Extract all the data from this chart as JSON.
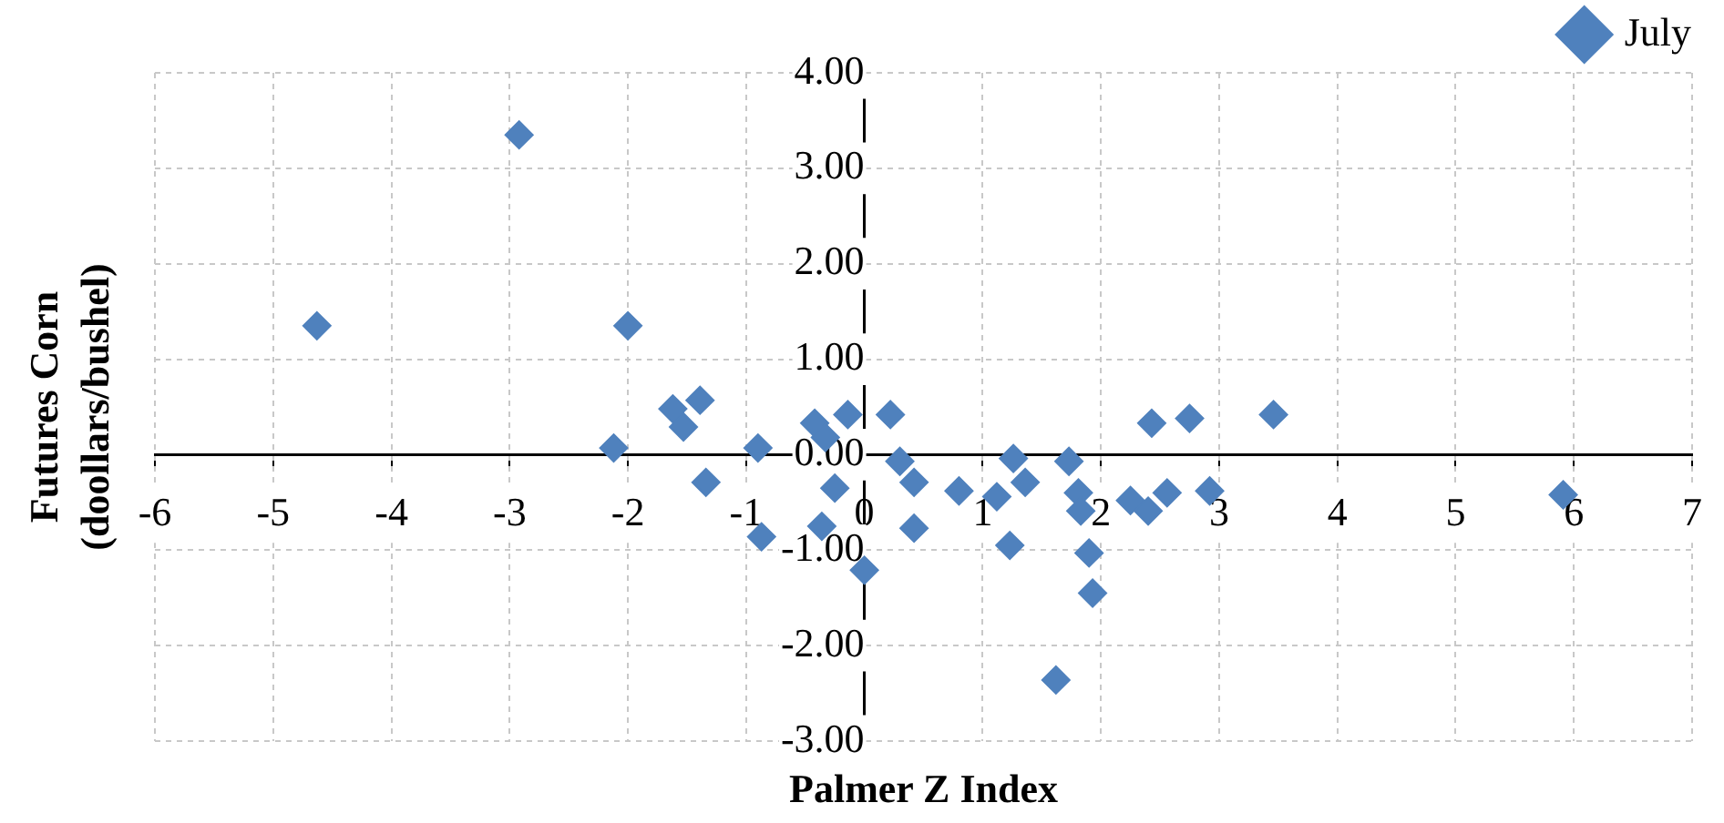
{
  "chart_data": {
    "type": "scatter",
    "xlabel": "Palmer Z Index",
    "ylabel": "Futures Corn\n(doollars/bushel)",
    "x": [
      -4.63,
      -2.92,
      -2.0,
      -2.12,
      -1.62,
      -1.53,
      -1.39,
      -1.34,
      -0.9,
      -0.87,
      -0.42,
      -0.33,
      -0.14,
      -0.25,
      -0.36,
      0,
      0.22,
      0.3,
      0.42,
      0.42,
      0.8,
      1.12,
      1.26,
      1.36,
      1.23,
      1.73,
      1.81,
      1.83,
      1.9,
      1.93,
      1.62,
      2.25,
      2.4,
      2.56,
      2.43,
      2.75,
      2.92,
      3.46,
      5.91
    ],
    "series": [
      {
        "name": "July",
        "color": "#4f81bd",
        "values": [
          1.35,
          3.35,
          1.35,
          0.07,
          0.48,
          0.29,
          0.57,
          -0.29,
          0.07,
          -0.86,
          0.33,
          0.18,
          0.42,
          -0.35,
          -0.75,
          -1.21,
          0.42,
          -0.07,
          -0.29,
          -0.77,
          -0.38,
          -0.44,
          -0.04,
          -0.29,
          -0.95,
          -0.07,
          -0.4,
          -0.59,
          -1.03,
          -1.45,
          -2.36,
          -0.48,
          -0.59,
          -0.4,
          0.33,
          0.38,
          -0.38,
          0.42,
          -0.42
        ]
      }
    ],
    "xlim": [
      -6,
      7
    ],
    "xticks": [
      -6,
      -5,
      -4,
      -3,
      -2,
      -1,
      0,
      1,
      2,
      3,
      4,
      5,
      6,
      7
    ],
    "ylim": [
      -3,
      4
    ],
    "yticks": [
      {
        "value": -3,
        "label": "-3.00"
      },
      {
        "value": -2,
        "label": "-2.00"
      },
      {
        "value": -1,
        "label": "-1.00"
      },
      {
        "value": 0,
        "label": "0.00"
      },
      {
        "value": 1,
        "label": "1.00"
      },
      {
        "value": 2,
        "label": "2.00"
      },
      {
        "value": 3,
        "label": "3.00"
      },
      {
        "value": 4,
        "label": "4.00"
      }
    ],
    "grid": true,
    "legend": "top right",
    "marker": "diamond"
  }
}
